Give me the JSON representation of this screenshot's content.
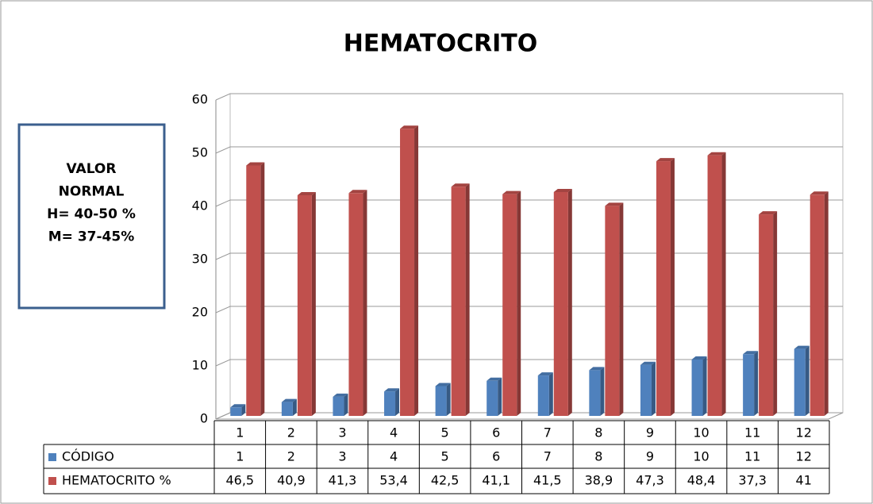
{
  "chart_data": {
    "type": "bar3d",
    "title": "HEMATOCRITO",
    "annotation": [
      "VALOR",
      "NORMAL",
      "H= 40-50 %",
      "M= 37-45%"
    ],
    "categories": [
      "1",
      "2",
      "3",
      "4",
      "5",
      "6",
      "7",
      "8",
      "9",
      "10",
      "11",
      "12"
    ],
    "series": [
      {
        "name": "CÓDIGO",
        "color": "#4f81bd",
        "values": [
          1,
          2,
          3,
          4,
          5,
          6,
          7,
          8,
          9,
          10,
          11,
          12
        ]
      },
      {
        "name": "HEMATOCRITO %",
        "color": "#c0504d",
        "values": [
          46.5,
          40.9,
          41.3,
          53.4,
          42.5,
          41.1,
          41.5,
          38.9,
          47.3,
          48.4,
          37.3,
          41
        ],
        "value_labels": [
          "46,5",
          "40,9",
          "41,3",
          "53,4",
          "42,5",
          "41,1",
          "41,5",
          "38,9",
          "47,3",
          "48,4",
          "37,3",
          "41"
        ]
      }
    ],
    "ylim": [
      0,
      60
    ],
    "yticks": [
      0,
      10,
      20,
      30,
      40,
      50,
      60
    ],
    "grid": true,
    "data_table": true
  }
}
